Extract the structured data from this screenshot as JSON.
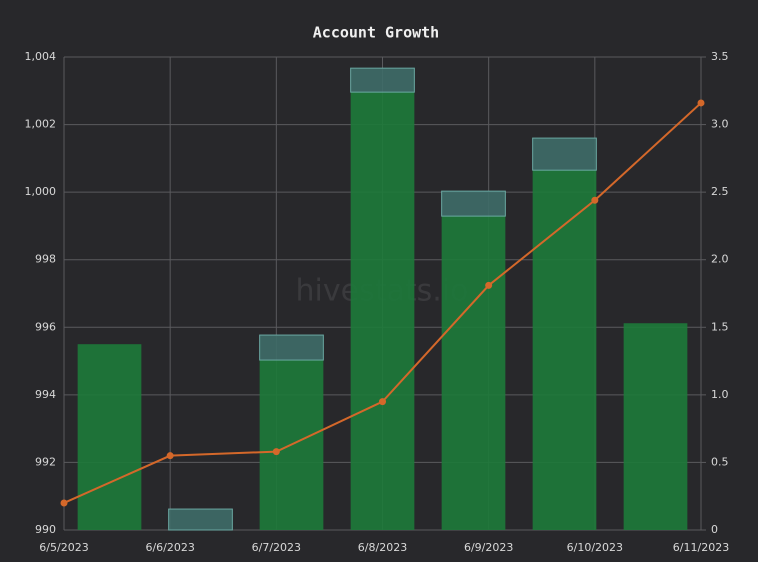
{
  "chart_data": {
    "type": "bar-line",
    "title": "Account Growth",
    "watermark": "hivestats.io",
    "categories": [
      "6/5/2023",
      "6/6/2023",
      "6/7/2023",
      "6/8/2023",
      "6/9/2023",
      "6/10/2023",
      "6/11/2023"
    ],
    "series": [
      {
        "type": "bar",
        "color": "#1d7a3a",
        "values": [
          995.5,
          990,
          995.03,
          1002.96,
          999.29,
          1000.65,
          996.12
        ]
      },
      {
        "type": "bar",
        "stacked": true,
        "color": "#3e6b68",
        "values": [
          null,
          0.62,
          0.74,
          0.71,
          0.74,
          0.95,
          null
        ]
      },
      {
        "type": "line",
        "axis": "y2",
        "color": "#d4682a",
        "values": [
          0.2,
          0.55,
          0.58,
          0.95,
          1.81,
          2.44,
          3.16
        ]
      }
    ],
    "ylim": [
      990,
      1004
    ],
    "yticks": [
      990,
      992,
      994,
      996,
      998,
      {
        "value": 1000,
        "label": "1,000"
      },
      {
        "value": 1002,
        "label": "1,002"
      },
      {
        "value": 1004,
        "label": "1,004"
      }
    ],
    "y2lim": [
      0,
      3.5
    ],
    "y2ticks": [
      0,
      0.5,
      {
        "value": 1,
        "label": "1.0"
      },
      1.5,
      {
        "value": 2,
        "label": "2.0"
      },
      2.5,
      {
        "value": 3,
        "label": "3.0"
      },
      3.5
    ],
    "grid": true
  }
}
